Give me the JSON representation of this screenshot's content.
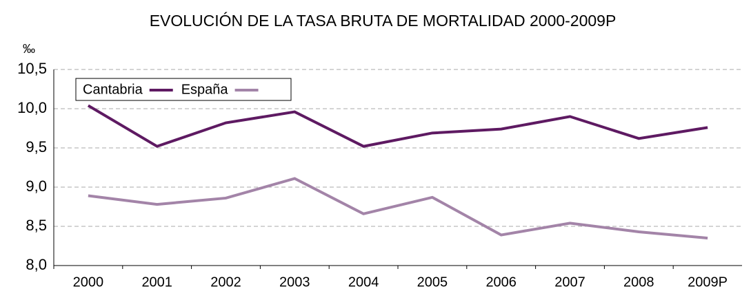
{
  "chart_data": {
    "type": "line",
    "title": "EVOLUCIÓN DE LA TASA BRUTA DE MORTALIDAD 2000-2009P",
    "y_label": "‰",
    "categories": [
      "2000",
      "2001",
      "2002",
      "2003",
      "2004",
      "2005",
      "2006",
      "2007",
      "2008",
      "2009P"
    ],
    "series": [
      {
        "name": "Cantabria",
        "color": "#5e1a62",
        "values": [
          10.04,
          9.52,
          9.82,
          9.96,
          9.52,
          9.69,
          9.74,
          9.9,
          9.62,
          9.76
        ]
      },
      {
        "name": "España",
        "color": "#a384a8",
        "values": [
          8.89,
          8.78,
          8.86,
          9.11,
          8.66,
          8.87,
          8.39,
          8.54,
          8.43,
          8.35
        ]
      }
    ],
    "ylim": [
      8.0,
      10.5
    ],
    "yticks": [
      {
        "value": 8.0,
        "label": "8,0"
      },
      {
        "value": 8.5,
        "label": "8,5"
      },
      {
        "value": 9.0,
        "label": "9,0"
      },
      {
        "value": 9.5,
        "label": "9,5"
      },
      {
        "value": 10.0,
        "label": "10,0"
      },
      {
        "value": 10.5,
        "label": "10,5"
      }
    ],
    "grid": true,
    "legend": "upper left"
  }
}
